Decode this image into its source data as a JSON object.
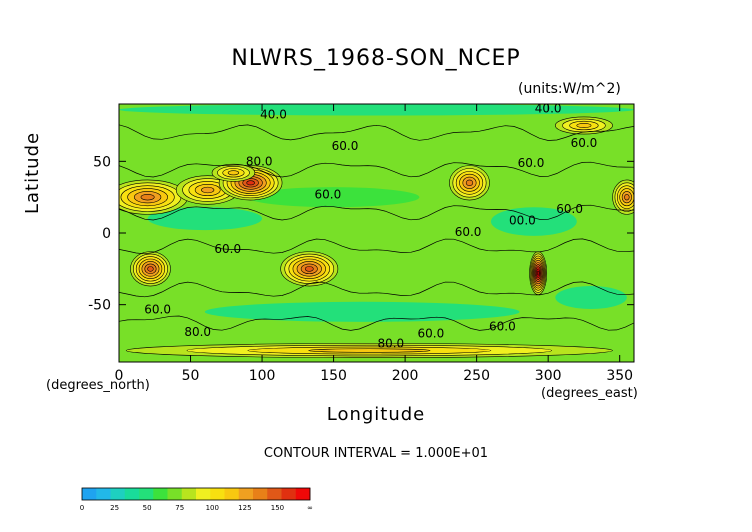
{
  "chart_data": {
    "type": "heatmap",
    "title": "NLWRS_1968-SON_NCEP",
    "units": "(units:W/m^2)",
    "xlabel": "Longitude",
    "ylabel": "Latitude",
    "x_unit_note": "(degrees_east)",
    "y_unit_note": "(degrees_north)",
    "xlim": [
      0,
      360
    ],
    "ylim": [
      -90,
      90
    ],
    "x_ticks": [
      0,
      50,
      100,
      150,
      200,
      250,
      300,
      350
    ],
    "y_ticks": [
      -50,
      0,
      50
    ],
    "contour_interval_text": "CONTOUR INTERVAL = 1.000E+01",
    "colorbar": {
      "ticks": [
        "0",
        "25",
        "50",
        "75",
        "100",
        "125",
        "150",
        "∞"
      ],
      "colors": [
        "#1fa3f0",
        "#22b8e8",
        "#1ed0c0",
        "#19dc9a",
        "#23e07a",
        "#3ce23c",
        "#78e028",
        "#b8e41e",
        "#f0f020",
        "#f8e010",
        "#f8c810",
        "#f0a020",
        "#e88018",
        "#e05818",
        "#e03010",
        "#f00808"
      ]
    },
    "contour_labels": [
      {
        "text": "40.0",
        "lon": 108,
        "lat": 80
      },
      {
        "text": "40.0",
        "lon": 300,
        "lat": 84
      },
      {
        "text": "60.0",
        "lon": 158,
        "lat": 58
      },
      {
        "text": "60.0",
        "lon": 325,
        "lat": 60
      },
      {
        "text": "60.0",
        "lon": 288,
        "lat": 46
      },
      {
        "text": "80.0",
        "lon": 98,
        "lat": 47
      },
      {
        "text": "60.0",
        "lon": 146,
        "lat": 24
      },
      {
        "text": "60.0",
        "lon": 315,
        "lat": 14
      },
      {
        "text": "00.0",
        "lon": 282,
        "lat": 6
      },
      {
        "text": "60.0",
        "lon": 244,
        "lat": -2
      },
      {
        "text": "60.0",
        "lon": 76,
        "lat": -14
      },
      {
        "text": "60.0",
        "lon": 27,
        "lat": -56
      },
      {
        "text": "60.0",
        "lon": 268,
        "lat": -68
      },
      {
        "text": "80.0",
        "lon": 55,
        "lat": -72
      },
      {
        "text": "60.0",
        "lon": 218,
        "lat": -73
      },
      {
        "text": "80.0",
        "lon": 190,
        "lat": -80
      }
    ],
    "hotspots": [
      {
        "lon": 20,
        "lat": 25,
        "rlon": 28,
        "rlat": 12,
        "value": 120
      },
      {
        "lon": 62,
        "lat": 30,
        "rlon": 22,
        "rlat": 10,
        "value": 110
      },
      {
        "lon": 92,
        "lat": 35,
        "rlon": 22,
        "rlat": 12,
        "value": 135
      },
      {
        "lon": 80,
        "lat": 42,
        "rlon": 15,
        "rlat": 6,
        "value": 100
      },
      {
        "lon": 245,
        "lat": 35,
        "rlon": 14,
        "rlat": 12,
        "value": 120
      },
      {
        "lon": 355,
        "lat": 25,
        "rlon": 10,
        "rlat": 12,
        "value": 120
      },
      {
        "lon": 22,
        "lat": -25,
        "rlon": 14,
        "rlat": 12,
        "value": 125
      },
      {
        "lon": 133,
        "lat": -25,
        "rlon": 20,
        "rlat": 12,
        "value": 125
      },
      {
        "lon": 293,
        "lat": -28,
        "rlon": 6,
        "rlat": 15,
        "value": 160
      },
      {
        "lon": 325,
        "lat": 75,
        "rlon": 20,
        "rlat": 6,
        "value": 100
      },
      {
        "lon": 175,
        "lat": -82,
        "rlon": 170,
        "rlat": 5,
        "value": 95
      }
    ],
    "lowspots": [
      {
        "lon": 180,
        "lat": 86,
        "rlon": 180,
        "rlat": 4,
        "value": 40
      },
      {
        "lon": 150,
        "lat": 25,
        "rlon": 60,
        "rlat": 7,
        "value": 50
      },
      {
        "lon": 60,
        "lat": 10,
        "rlon": 40,
        "rlat": 8,
        "value": 45
      },
      {
        "lon": 290,
        "lat": 8,
        "rlon": 30,
        "rlat": 10,
        "value": 45
      },
      {
        "lon": 170,
        "lat": -55,
        "rlon": 110,
        "rlat": 7,
        "value": 45
      },
      {
        "lon": 330,
        "lat": -45,
        "rlon": 25,
        "rlat": 8,
        "value": 45
      }
    ]
  }
}
